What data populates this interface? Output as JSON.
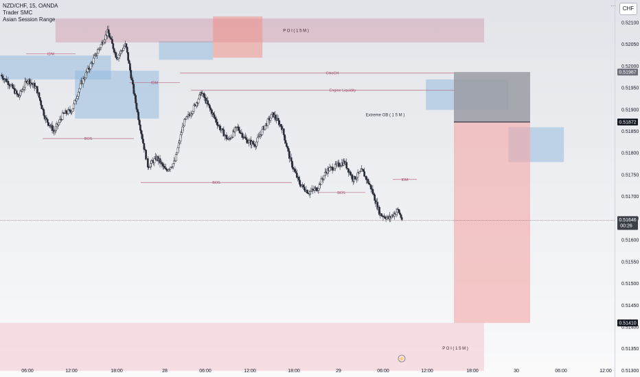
{
  "legend": {
    "symbol_line": "NZD/CHF, 15, OANDA",
    "indicator_1": "Trader SMC",
    "indicator_2": "Asian Session Range"
  },
  "currency_button": "CHF",
  "chart_data": {
    "type": "candlestick",
    "symbol": "NZD/CHF",
    "timeframe": "15",
    "source": "OANDA",
    "ylim": [
      0.513,
      0.5212
    ],
    "y_ticks": [
      "0.52100",
      "0.52050",
      "0.52000",
      "0.51950",
      "0.51900",
      "0.51850",
      "0.51800",
      "0.51750",
      "0.51700",
      "0.51650",
      "0.51600",
      "0.51550",
      "0.51500",
      "0.51450",
      "0.51400",
      "0.51350",
      "0.51300"
    ],
    "x_ticks": [
      "06:00",
      "12:00",
      "18:00",
      "28",
      "06:00",
      "12:00",
      "18:00",
      "29",
      "06:00",
      "12:00",
      "18:00",
      "30",
      "06:00",
      "12:00"
    ],
    "close_path_t": [
      0,
      4,
      8,
      12,
      16,
      20,
      24,
      28,
      32,
      36,
      40,
      44,
      48,
      52,
      56,
      60,
      64,
      66,
      70,
      74,
      78,
      82,
      86,
      90,
      94,
      98,
      102,
      106,
      110,
      114,
      118,
      122,
      126,
      130,
      134,
      138,
      142,
      146,
      150,
      154,
      158,
      162,
      166,
      170,
      174,
      178,
      180
    ],
    "close_path_p": [
      0.5198,
      0.5196,
      0.5193,
      0.5197,
      0.5195,
      0.5188,
      0.5185,
      0.5189,
      0.519,
      0.5196,
      0.52,
      0.5204,
      0.5208,
      0.5202,
      0.5205,
      0.5193,
      0.5182,
      0.5177,
      0.5179,
      0.5176,
      0.5178,
      0.5187,
      0.519,
      0.5194,
      0.519,
      0.5186,
      0.5183,
      0.5186,
      0.5183,
      0.5182,
      0.5186,
      0.5189,
      0.5186,
      0.5178,
      0.5173,
      0.5171,
      0.5172,
      0.5176,
      0.5177,
      0.5178,
      0.5174,
      0.5176,
      0.5172,
      0.5166,
      0.5165,
      0.5167,
      0.51646
    ],
    "current_price": "0.51646",
    "countdown": "00:26",
    "price_labels": [
      {
        "text": "0.51987",
        "price": 0.51987,
        "color": "#6b6f7a"
      },
      {
        "text": "0.51872",
        "price": 0.51872,
        "color": "#131722"
      },
      {
        "text": "0.51410",
        "price": 0.5141,
        "color": "#131722"
      }
    ],
    "zones": [
      {
        "label": "P O I ( 1 5 M )",
        "x0": 3.7,
        "x1": 81,
        "p0": 0.52055,
        "p1": 0.5211,
        "color": "#c97a93",
        "opacity": 0.33
      },
      {
        "label": "",
        "x0": 14.2,
        "x1": 17.5,
        "p0": 0.5202,
        "p1": 0.52115,
        "color": "#f28b82",
        "opacity": 0.5
      },
      {
        "label": "Extreme OB ( 1 5 M )",
        "x0": 67,
        "x1": 81,
        "p0": 0.51872,
        "p1": 0.51905,
        "color": "#c97a93",
        "opacity": 0.38
      },
      {
        "label": "",
        "x0": 64,
        "x1": 67,
        "p0": 0.5179,
        "p1": 0.51905,
        "color": "#f28b82",
        "opacity": 0.5
      },
      {
        "label": "P O I ( 1 5 M )",
        "x0": 0,
        "x1": 81,
        "p0": 0.513,
        "p1": 0.5141,
        "color": "#f3bfcc",
        "opacity": 0.5
      }
    ],
    "sessions": [
      {
        "x0": 0,
        "x1": 7.4,
        "p0": 0.5197,
        "p1": 0.52025
      },
      {
        "x0": 5,
        "x1": 10.6,
        "p0": 0.5188,
        "p1": 0.5199
      },
      {
        "x0": 10.6,
        "x1": 14.2,
        "p0": 0.52015,
        "p1": 0.52058
      },
      {
        "x0": 28.4,
        "x1": 33.9,
        "p0": 0.519,
        "p1": 0.5197
      },
      {
        "x0": 33.9,
        "x1": 37.6,
        "p0": 0.5178,
        "p1": 0.5186
      },
      {
        "x0": 53.6,
        "x1": 58.3,
        "p0": 0.51625,
        "p1": 0.5179
      }
    ],
    "levels": [
      {
        "label": "IDM",
        "x0": 3.4,
        "x1": 9.8,
        "price": 0.52029
      },
      {
        "label": "BOS",
        "x0": 5.2,
        "x1": 21.5,
        "price": 0.51834
      },
      {
        "label": "IDM",
        "x0": 15.5,
        "x1": 31.8,
        "price": 0.51963
      },
      {
        "label": "CHoCH",
        "x0": 26.5,
        "x1": 69,
        "price": 0.51985
      },
      {
        "label": "Engine Liquidity",
        "x0": 27.9,
        "x1": 69,
        "price": 0.51945
      },
      {
        "label": "BOS",
        "x0": 20.7,
        "x1": 47.5,
        "price": 0.51733
      },
      {
        "label": "BOS",
        "x0": 45.4,
        "x1": 54.5,
        "price": 0.5171
      },
      {
        "label": "IDM",
        "x0": 57,
        "x1": 62,
        "price": 0.5174
      }
    ],
    "position": {
      "x0": 67.3,
      "x1": 78,
      "entry": 0.51872,
      "target": 0.51987,
      "stop": 0.5141
    }
  }
}
